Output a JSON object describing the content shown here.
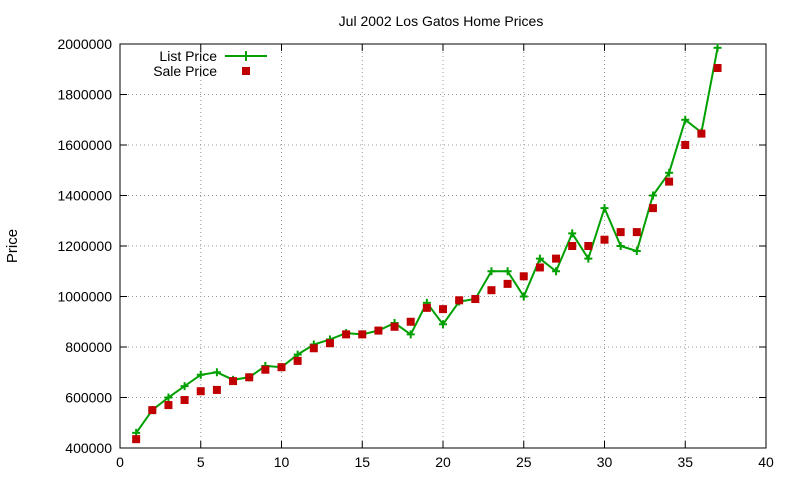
{
  "chart_data": {
    "type": "line",
    "title": "Jul 2002 Los Gatos Home Prices",
    "xlabel": "",
    "ylabel": "Price",
    "xlim": [
      0,
      40
    ],
    "ylim": [
      400000,
      2000000
    ],
    "xticks": [
      0,
      5,
      10,
      15,
      20,
      25,
      30,
      35,
      40
    ],
    "yticks": [
      400000,
      600000,
      800000,
      1000000,
      1200000,
      1400000,
      1600000,
      1800000,
      2000000
    ],
    "grid": true,
    "legend_position": "top-left",
    "series": [
      {
        "name": "List Price",
        "style": "line+cross",
        "color": "#00a000",
        "x": [
          1,
          2,
          3,
          4,
          5,
          6,
          7,
          8,
          9,
          10,
          11,
          12,
          13,
          14,
          15,
          16,
          17,
          18,
          19,
          20,
          21,
          22,
          23,
          24,
          25,
          26,
          27,
          28,
          29,
          30,
          31,
          32,
          33,
          34,
          35,
          36,
          37
        ],
        "y": [
          460000,
          550000,
          600000,
          645000,
          690000,
          700000,
          670000,
          680000,
          725000,
          720000,
          770000,
          810000,
          830000,
          855000,
          850000,
          865000,
          895000,
          850000,
          975000,
          890000,
          980000,
          990000,
          1100000,
          1100000,
          1000000,
          1150000,
          1100000,
          1250000,
          1150000,
          1350000,
          1200000,
          1180000,
          1400000,
          1490000,
          1700000,
          1650000,
          1985000
        ]
      },
      {
        "name": "Sale Price",
        "style": "square",
        "color": "#c00000",
        "x": [
          1,
          2,
          3,
          4,
          5,
          6,
          7,
          8,
          9,
          10,
          11,
          12,
          13,
          14,
          15,
          16,
          17,
          18,
          19,
          20,
          21,
          22,
          23,
          24,
          25,
          26,
          27,
          28,
          29,
          30,
          31,
          32,
          33,
          34,
          35,
          36,
          37
        ],
        "y": [
          435000,
          550000,
          570000,
          590000,
          625000,
          630000,
          665000,
          680000,
          710000,
          720000,
          745000,
          795000,
          815000,
          850000,
          850000,
          865000,
          880000,
          900000,
          955000,
          950000,
          985000,
          990000,
          1025000,
          1050000,
          1080000,
          1115000,
          1150000,
          1200000,
          1200000,
          1225000,
          1255000,
          1255000,
          1350000,
          1455000,
          1600000,
          1645000,
          1905000
        ]
      }
    ]
  }
}
